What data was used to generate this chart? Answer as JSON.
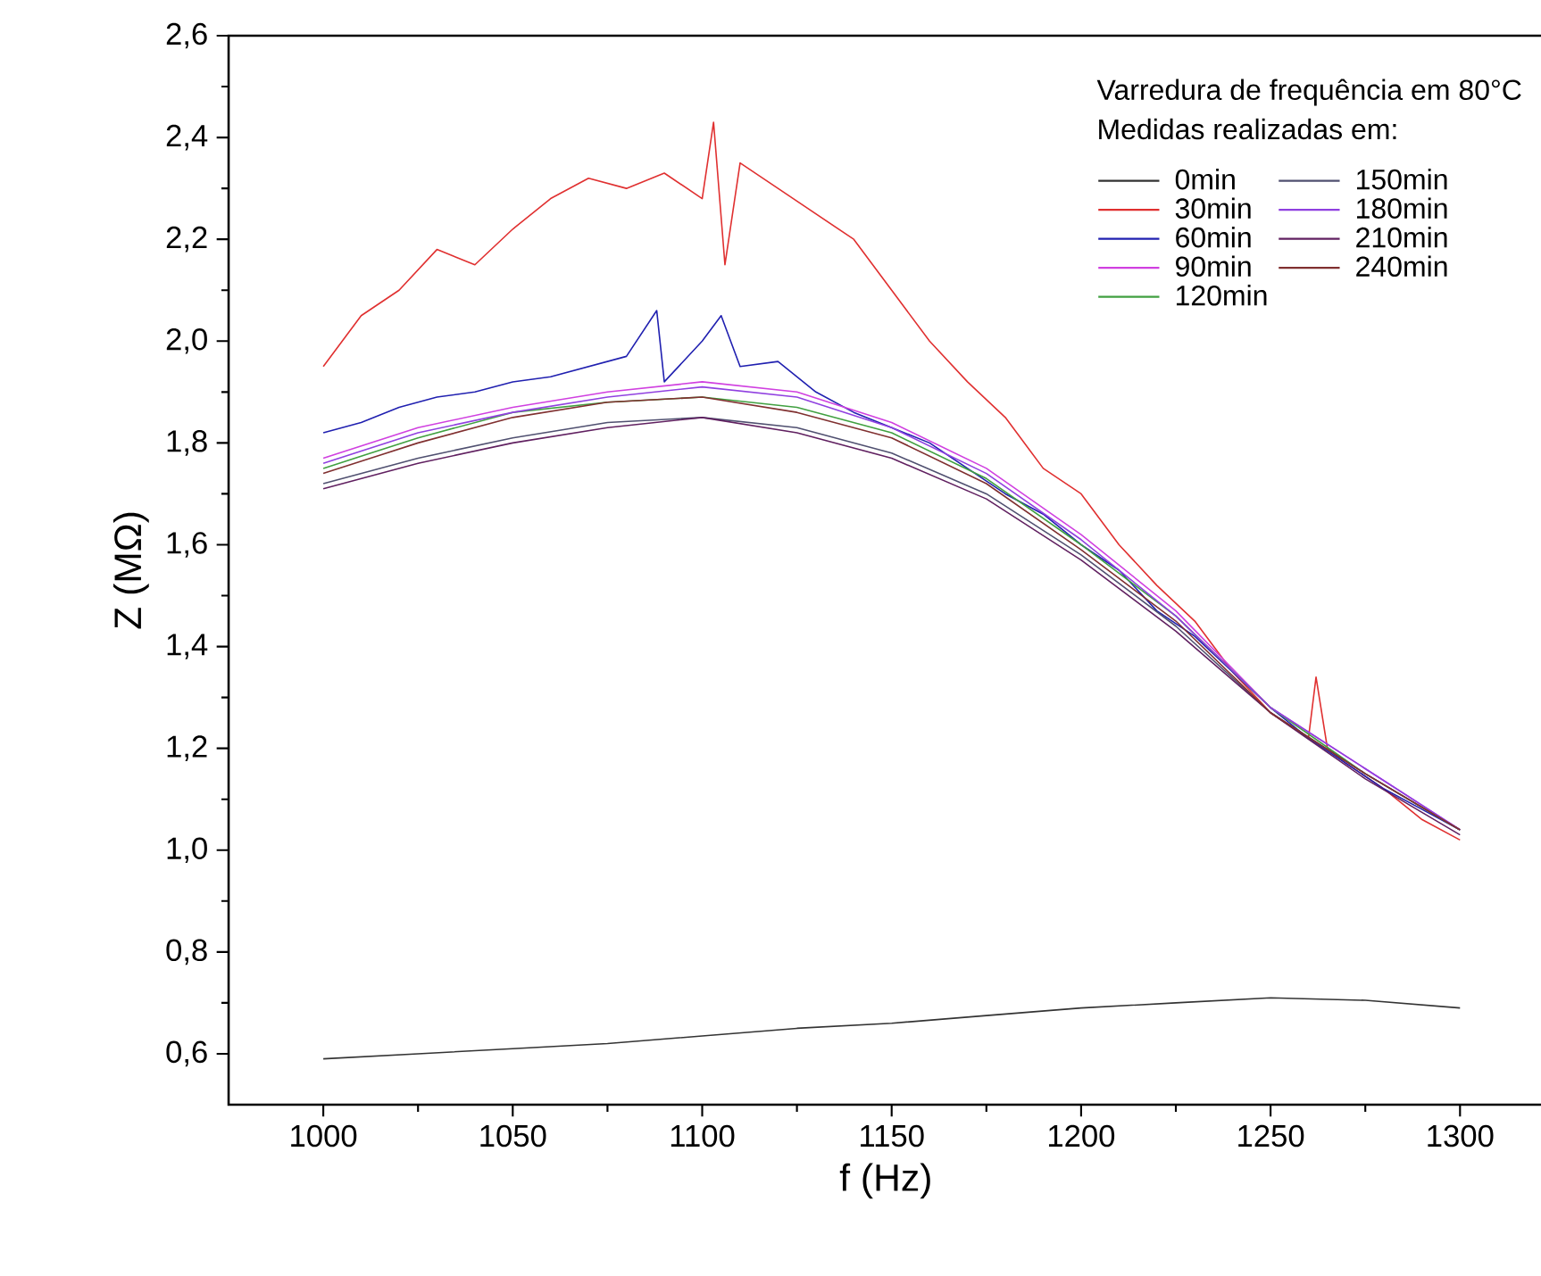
{
  "chart_data": {
    "type": "line",
    "xlabel": "f (Hz)",
    "ylabel": "Z (MΩ)",
    "annotations": [
      "Varredura de frequência em 80°C"
    ],
    "legend_title": "Medidas realizadas em:",
    "legend": "top right",
    "grid": false,
    "marker": "none",
    "line_style": "solid",
    "xlim": [
      975,
      1322
    ],
    "ylim": [
      0.5,
      2.6
    ],
    "xticks": [
      1000,
      1050,
      1100,
      1150,
      1200,
      1250,
      1300
    ],
    "yticks": [
      {
        "value": 0.6,
        "label": "0,6"
      },
      {
        "value": 0.8,
        "label": "0,8"
      },
      {
        "value": 1.0,
        "label": "1,0"
      },
      {
        "value": 1.2,
        "label": "1,2"
      },
      {
        "value": 1.4,
        "label": "1,4"
      },
      {
        "value": 1.6,
        "label": "1,6"
      },
      {
        "value": 1.8,
        "label": "1,8"
      },
      {
        "value": 2.0,
        "label": "2,0"
      },
      {
        "value": 2.2,
        "label": "2,2"
      },
      {
        "value": 2.4,
        "label": "2,4"
      },
      {
        "value": 2.6,
        "label": "2,6"
      }
    ],
    "x": [
      1000,
      1025,
      1050,
      1075,
      1100,
      1125,
      1150,
      1175,
      1200,
      1225,
      1250,
      1275,
      1300
    ],
    "series": [
      {
        "name": "0min",
        "color": "#333333",
        "values": [
          0.59,
          0.6,
          0.61,
          0.62,
          0.635,
          0.65,
          0.66,
          0.675,
          0.69,
          0.7,
          0.71,
          0.705,
          0.69
        ]
      },
      {
        "name": "30min",
        "color": "#e03030",
        "x": [
          1000,
          1010,
          1020,
          1030,
          1040,
          1050,
          1060,
          1070,
          1080,
          1090,
          1100,
          1103,
          1106,
          1110,
          1120,
          1130,
          1140,
          1150,
          1160,
          1170,
          1180,
          1190,
          1200,
          1210,
          1220,
          1230,
          1240,
          1250,
          1260,
          1262,
          1265,
          1270,
          1280,
          1290,
          1300
        ],
        "values": [
          1.95,
          2.05,
          2.1,
          2.18,
          2.15,
          2.22,
          2.28,
          2.32,
          2.3,
          2.33,
          2.28,
          2.43,
          2.15,
          2.35,
          2.3,
          2.25,
          2.2,
          2.1,
          2.0,
          1.92,
          1.85,
          1.75,
          1.7,
          1.6,
          1.52,
          1.45,
          1.35,
          1.27,
          1.22,
          1.34,
          1.2,
          1.17,
          1.12,
          1.06,
          1.02
        ]
      },
      {
        "name": "60min",
        "color": "#2020b0",
        "x": [
          1000,
          1010,
          1020,
          1030,
          1040,
          1050,
          1060,
          1070,
          1080,
          1088,
          1090,
          1100,
          1105,
          1110,
          1120,
          1130,
          1140,
          1150,
          1160,
          1170,
          1180,
          1190,
          1200,
          1210,
          1220,
          1230,
          1240,
          1250,
          1260,
          1270,
          1280,
          1290,
          1300
        ],
        "values": [
          1.82,
          1.84,
          1.87,
          1.89,
          1.9,
          1.92,
          1.93,
          1.95,
          1.97,
          2.06,
          1.92,
          2.0,
          2.05,
          1.95,
          1.96,
          1.9,
          1.86,
          1.83,
          1.8,
          1.75,
          1.7,
          1.66,
          1.6,
          1.55,
          1.47,
          1.42,
          1.35,
          1.28,
          1.22,
          1.17,
          1.12,
          1.08,
          1.04
        ]
      },
      {
        "name": "90min",
        "color": "#d040e0",
        "values": [
          1.77,
          1.83,
          1.87,
          1.9,
          1.92,
          1.9,
          1.84,
          1.75,
          1.62,
          1.47,
          1.28,
          1.16,
          1.04
        ]
      },
      {
        "name": "120min",
        "color": "#40a040",
        "values": [
          1.75,
          1.81,
          1.86,
          1.88,
          1.89,
          1.87,
          1.82,
          1.73,
          1.6,
          1.46,
          1.28,
          1.15,
          1.04
        ]
      },
      {
        "name": "150min",
        "color": "#505070",
        "values": [
          1.72,
          1.77,
          1.81,
          1.84,
          1.85,
          1.83,
          1.78,
          1.7,
          1.58,
          1.44,
          1.27,
          1.15,
          1.04
        ]
      },
      {
        "name": "180min",
        "color": "#9040e0",
        "values": [
          1.76,
          1.82,
          1.86,
          1.89,
          1.91,
          1.89,
          1.83,
          1.74,
          1.61,
          1.46,
          1.28,
          1.16,
          1.04
        ]
      },
      {
        "name": "210min",
        "color": "#602060",
        "values": [
          1.71,
          1.76,
          1.8,
          1.83,
          1.85,
          1.82,
          1.77,
          1.69,
          1.57,
          1.43,
          1.27,
          1.14,
          1.03
        ]
      },
      {
        "name": "240min",
        "color": "#803030",
        "values": [
          1.74,
          1.8,
          1.85,
          1.88,
          1.89,
          1.86,
          1.81,
          1.72,
          1.59,
          1.45,
          1.27,
          1.15,
          1.04
        ]
      }
    ]
  }
}
